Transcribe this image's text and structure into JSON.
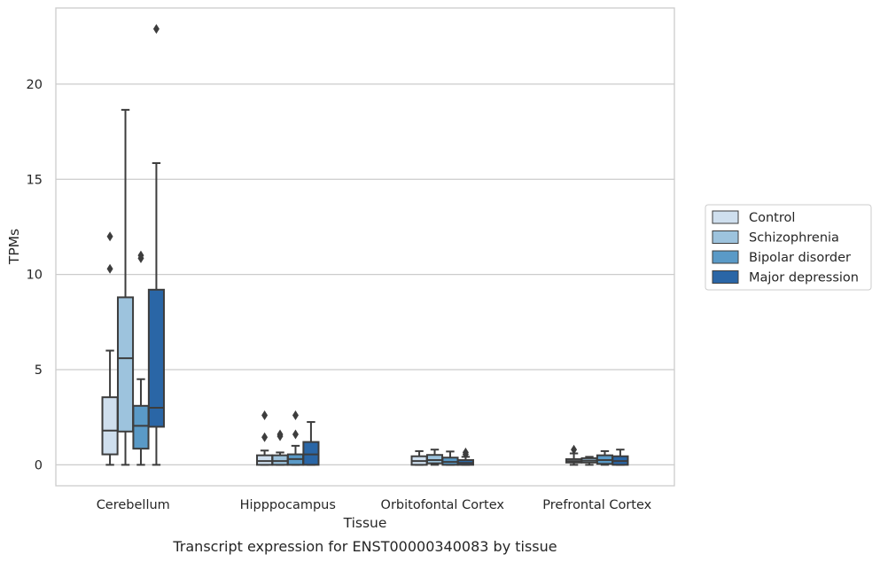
{
  "chart_data": {
    "type": "box",
    "xlabel": "Tissue",
    "ylabel": "TPMs",
    "caption": "Transcript expression for ENST00000340083 by tissue",
    "ylim": [
      -1.1,
      24
    ],
    "yticks": [
      0,
      5,
      10,
      15,
      20
    ],
    "grid": true,
    "legend_placement": "right",
    "categories": [
      "Cerebellum",
      "Hipppocampus",
      "Orbitofontal Cortex",
      "Prefrontal Cortex"
    ],
    "series": [
      {
        "name": "Control",
        "color": "#cfdfee",
        "boxes": [
          {
            "whisker_low": 0,
            "q1": 0.55,
            "median": 1.8,
            "q3": 3.55,
            "whisker_high": 6.0,
            "outliers": [
              10.3,
              12.0
            ]
          },
          {
            "whisker_low": 0,
            "q1": 0.0,
            "median": 0.2,
            "q3": 0.5,
            "whisker_high": 0.75,
            "outliers": [
              1.45,
              2.6
            ]
          },
          {
            "whisker_low": 0,
            "q1": 0.0,
            "median": 0.2,
            "q3": 0.45,
            "whisker_high": 0.72,
            "outliers": []
          },
          {
            "whisker_low": 0,
            "q1": 0.12,
            "median": 0.2,
            "q3": 0.3,
            "whisker_high": 0.6,
            "outliers": [
              0.8
            ]
          }
        ]
      },
      {
        "name": "Schizophrenia",
        "color": "#9dc3dd",
        "boxes": [
          {
            "whisker_low": 0,
            "q1": 1.75,
            "median": 5.6,
            "q3": 8.8,
            "whisker_high": 18.65,
            "outliers": []
          },
          {
            "whisker_low": 0,
            "q1": 0.0,
            "median": 0.2,
            "q3": 0.5,
            "whisker_high": 0.65,
            "outliers": [
              1.5,
              1.6
            ]
          },
          {
            "whisker_low": 0,
            "q1": 0.08,
            "median": 0.25,
            "q3": 0.52,
            "whisker_high": 0.8,
            "outliers": []
          },
          {
            "whisker_low": 0,
            "q1": 0.12,
            "median": 0.22,
            "q3": 0.35,
            "whisker_high": 0.42,
            "outliers": []
          }
        ]
      },
      {
        "name": "Bipolar disorder",
        "color": "#5a9ac7",
        "boxes": [
          {
            "whisker_low": 0,
            "q1": 0.85,
            "median": 2.05,
            "q3": 3.1,
            "whisker_high": 4.5,
            "outliers": [
              10.85,
              11.0
            ]
          },
          {
            "whisker_low": 0,
            "q1": 0.0,
            "median": 0.3,
            "q3": 0.55,
            "whisker_high": 1.0,
            "outliers": [
              1.6,
              2.6
            ]
          },
          {
            "whisker_low": 0,
            "q1": 0.0,
            "median": 0.15,
            "q3": 0.38,
            "whisker_high": 0.7,
            "outliers": []
          },
          {
            "whisker_low": 0,
            "q1": 0.05,
            "median": 0.25,
            "q3": 0.5,
            "whisker_high": 0.72,
            "outliers": []
          }
        ]
      },
      {
        "name": "Major depression",
        "color": "#2a66a6",
        "boxes": [
          {
            "whisker_low": 0,
            "q1": 2.0,
            "median": 3.0,
            "q3": 9.2,
            "whisker_high": 15.85,
            "outliers": [
              22.9
            ]
          },
          {
            "whisker_low": 0,
            "q1": 0.0,
            "median": 0.55,
            "q3": 1.2,
            "whisker_high": 2.25,
            "outliers": []
          },
          {
            "whisker_low": 0,
            "q1": 0.0,
            "median": 0.1,
            "q3": 0.25,
            "whisker_high": 0.42,
            "outliers": [
              0.55,
              0.65
            ]
          },
          {
            "whisker_low": 0,
            "q1": 0.0,
            "median": 0.2,
            "q3": 0.45,
            "whisker_high": 0.8,
            "outliers": []
          }
        ]
      }
    ]
  }
}
